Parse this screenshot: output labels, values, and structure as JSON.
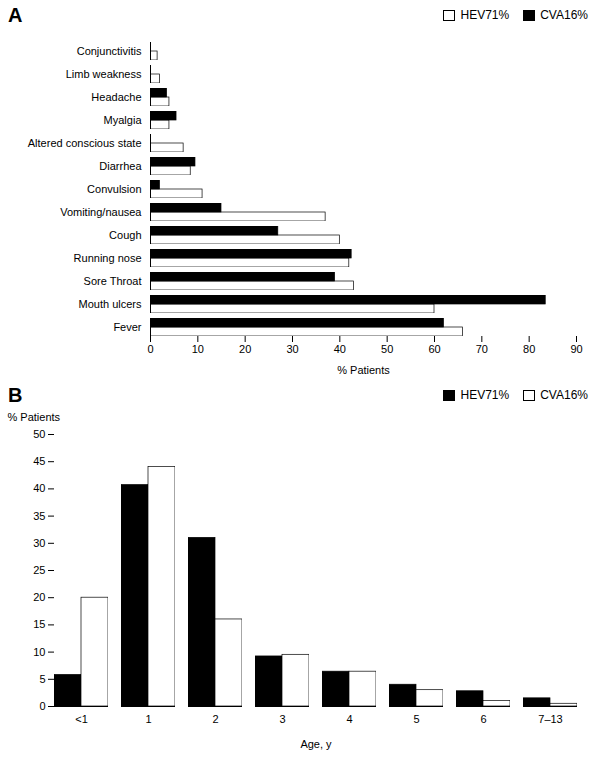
{
  "chart_data": [
    {
      "type": "bar",
      "orientation": "horizontal",
      "title": "A",
      "categories": [
        "Fever",
        "Mouth ulcers",
        "Sore Throat",
        "Running nose",
        "Cough",
        "Vomiting/nausea",
        "Convulsion",
        "Diarrhea",
        "Altered conscious state",
        "Myalgia",
        "Headache",
        "Limb weakness",
        "Conjunctivitis"
      ],
      "series": [
        {
          "name": "HEV71%",
          "color": "#ffffff",
          "values": [
            66.0,
            60.0,
            43.0,
            42.0,
            40.0,
            37.0,
            11.0,
            8.5,
            7.0,
            4.0,
            4.0,
            2.0,
            1.5
          ]
        },
        {
          "name": "CVA16%",
          "color": "#000000",
          "values": [
            62.0,
            83.5,
            39.0,
            42.5,
            27.0,
            15.0,
            2.0,
            9.5,
            0.0,
            5.5,
            3.5,
            0.0,
            0.0
          ]
        }
      ],
      "xlim": [
        0,
        90
      ],
      "xticks": [
        0,
        10,
        20,
        30,
        40,
        50,
        60,
        70,
        80,
        90
      ],
      "xlabel": "% Patients",
      "legend": "upper right",
      "grid": false
    },
    {
      "type": "bar",
      "title": "B",
      "categories": [
        "<1",
        "1",
        "2",
        "3",
        "4",
        "5",
        "6",
        "7–13"
      ],
      "series": [
        {
          "name": "HEV71%",
          "color": "#000000",
          "values": [
            5.8,
            40.7,
            31.0,
            9.2,
            6.4,
            4.0,
            2.8,
            1.5
          ]
        },
        {
          "name": "CVA16%",
          "color": "#ffffff",
          "values": [
            20.0,
            44.0,
            16.0,
            9.5,
            6.4,
            3.0,
            1.0,
            0.5
          ]
        }
      ],
      "ylim": [
        0,
        50
      ],
      "yticks": [
        0,
        5,
        10,
        15,
        20,
        25,
        30,
        35,
        40,
        45,
        50
      ],
      "xlabel": "Age, y",
      "ylabel": "% Patients",
      "legend": "upper right",
      "grid": false
    }
  ]
}
